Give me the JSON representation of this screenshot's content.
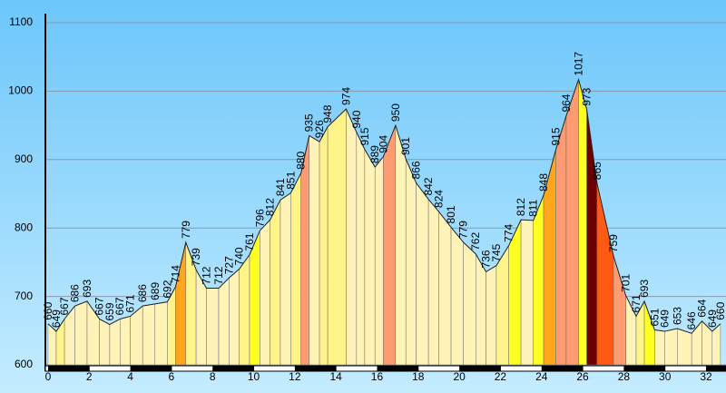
{
  "chart_data": {
    "type": "elevation-profile",
    "x": [
      0,
      0.4,
      0.8,
      1.3,
      1.9,
      2.5,
      3.0,
      3.5,
      4.0,
      4.6,
      5.2,
      5.8,
      6.2,
      6.7,
      7.2,
      7.7,
      8.3,
      8.8,
      9.3,
      9.8,
      10.3,
      10.8,
      11.3,
      11.8,
      12.3,
      12.7,
      13.2,
      13.6,
      14.5,
      15.0,
      15.4,
      15.9,
      16.3,
      16.9,
      17.4,
      17.9,
      18.5,
      19.0,
      19.6,
      20.2,
      20.8,
      21.3,
      21.8,
      22.4,
      23.0,
      23.6,
      24.1,
      24.7,
      25.2,
      25.8,
      26.2,
      26.7,
      27.5,
      28.1,
      28.6,
      29.0,
      29.5,
      30.0,
      30.6,
      31.3,
      31.8,
      32.3,
      32.7
    ],
    "values": [
      660,
      649,
      667,
      686,
      693,
      667,
      659,
      667,
      671,
      686,
      689,
      692,
      714,
      779,
      739,
      712,
      712,
      727,
      740,
      761,
      796,
      812,
      841,
      851,
      880,
      935,
      926,
      948,
      974,
      940,
      915,
      889,
      904,
      950,
      901,
      866,
      842,
      824,
      801,
      779,
      762,
      736,
      745,
      774,
      812,
      811,
      848,
      915,
      964,
      1017,
      973,
      865,
      759,
      701,
      671,
      693,
      651,
      649,
      653,
      646,
      664,
      649,
      660
    ],
    "segment_colors": [
      "#fff3b8",
      "#fff48a",
      "#fff3b8",
      "#fff3b8",
      "#fff3b8",
      "#fff3b8",
      "#fff3b8",
      "#fff3b8",
      "#fff3b8",
      "#fff3b8",
      "#fff3b8",
      "#fff48a",
      "#ffa51e",
      "#fff48a",
      "#fff3b8",
      "#fff3b8",
      "#fff3b8",
      "#fff3b8",
      "#fff48a",
      "#ffff22",
      "#fff3b8",
      "#fff48a",
      "#fff3b8",
      "#fff48a",
      "#ff9b73",
      "#fff3b8",
      "#fff48a",
      "#fff48a",
      "#fff3b8",
      "#fff3b8",
      "#fff3b8",
      "#fff3b8",
      "#ff9b73",
      "#fff3b8",
      "#fff3b8",
      "#fff3b8",
      "#fff3b8",
      "#fff3b8",
      "#fff3b8",
      "#fff3b8",
      "#fff3b8",
      "#fff3b8",
      "#fff48a",
      "#ffff22",
      "#fff3b8",
      "#ffff22",
      "#ffa51e",
      "#ff9b73",
      "#ff9b73",
      "#ffff22",
      "#6b0000",
      "#ff5a14",
      "#ff9b73",
      "#fff3b8",
      "#fff48a",
      "#ffff22",
      "#fff3b8",
      "#fff3b8",
      "#fff3b8",
      "#fff3b8",
      "#fff3b8",
      "#fff3b8"
    ],
    "xlim": [
      -0.13,
      32.97
    ],
    "ylim": [
      600,
      1100
    ],
    "xticks": [
      0,
      2,
      4,
      6,
      8,
      10,
      12,
      14,
      16,
      18,
      20,
      22,
      24,
      26,
      28,
      30,
      32
    ],
    "yticks": [
      600,
      700,
      800,
      900,
      1000,
      1100
    ],
    "grid": true
  }
}
